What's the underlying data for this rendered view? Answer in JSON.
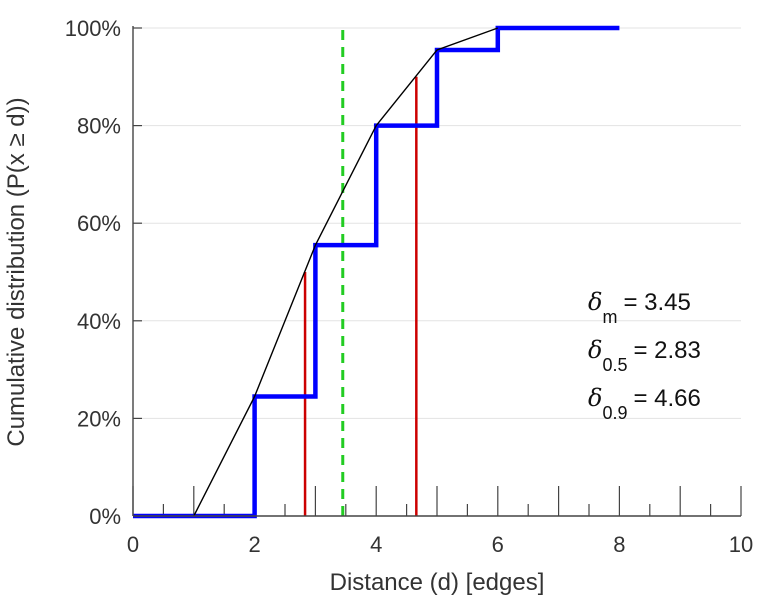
{
  "chart_data": {
    "type": "line",
    "xlabel": "Distance (d) [edges]",
    "ylabel": "Cumulative distribution (P(x ≥ d))",
    "xlim": [
      0,
      10
    ],
    "ylim": [
      0,
      1
    ],
    "x_ticks": [
      0,
      2,
      4,
      6,
      8,
      10
    ],
    "x_tick_labels": [
      "0",
      "2",
      "4",
      "6",
      "8",
      "10"
    ],
    "y_ticks": [
      0,
      0.2,
      0.4,
      0.6,
      0.8,
      1.0
    ],
    "y_tick_labels": [
      "0%",
      "20%",
      "40%",
      "60%",
      "80%",
      "100%"
    ],
    "grid": true,
    "series": [
      {
        "kind": "step",
        "color": "#0000ff",
        "points": [
          [
            0,
            0
          ],
          [
            2,
            0
          ],
          [
            2,
            0.245
          ],
          [
            3,
            0.245
          ],
          [
            3,
            0.555
          ],
          [
            4,
            0.555
          ],
          [
            4,
            0.8
          ],
          [
            5,
            0.8
          ],
          [
            5,
            0.955
          ],
          [
            6,
            0.955
          ],
          [
            6,
            1.0
          ],
          [
            8,
            1.0
          ]
        ]
      },
      {
        "kind": "line",
        "color": "#000000",
        "points": [
          [
            1,
            0
          ],
          [
            2,
            0.245
          ],
          [
            3,
            0.555
          ],
          [
            4,
            0.8
          ],
          [
            5,
            0.955
          ],
          [
            6,
            1.0
          ]
        ]
      }
    ],
    "vlines": [
      {
        "x": 3.45,
        "color": "#22cc22",
        "style": "dashed",
        "y_to": 1.0
      },
      {
        "x": 2.83,
        "color": "#cc0000",
        "style": "solid",
        "y_to": 0.5
      },
      {
        "x": 4.66,
        "color": "#cc0000",
        "style": "solid",
        "y_to": 0.9
      }
    ],
    "annotations": [
      {
        "symbol": "δ",
        "sub": "m",
        "value": "= 3.45"
      },
      {
        "symbol": "δ",
        "sub": "0.5",
        "value": "= 2.83"
      },
      {
        "symbol": "δ",
        "sub": "0.9",
        "value": "= 4.66"
      }
    ]
  }
}
